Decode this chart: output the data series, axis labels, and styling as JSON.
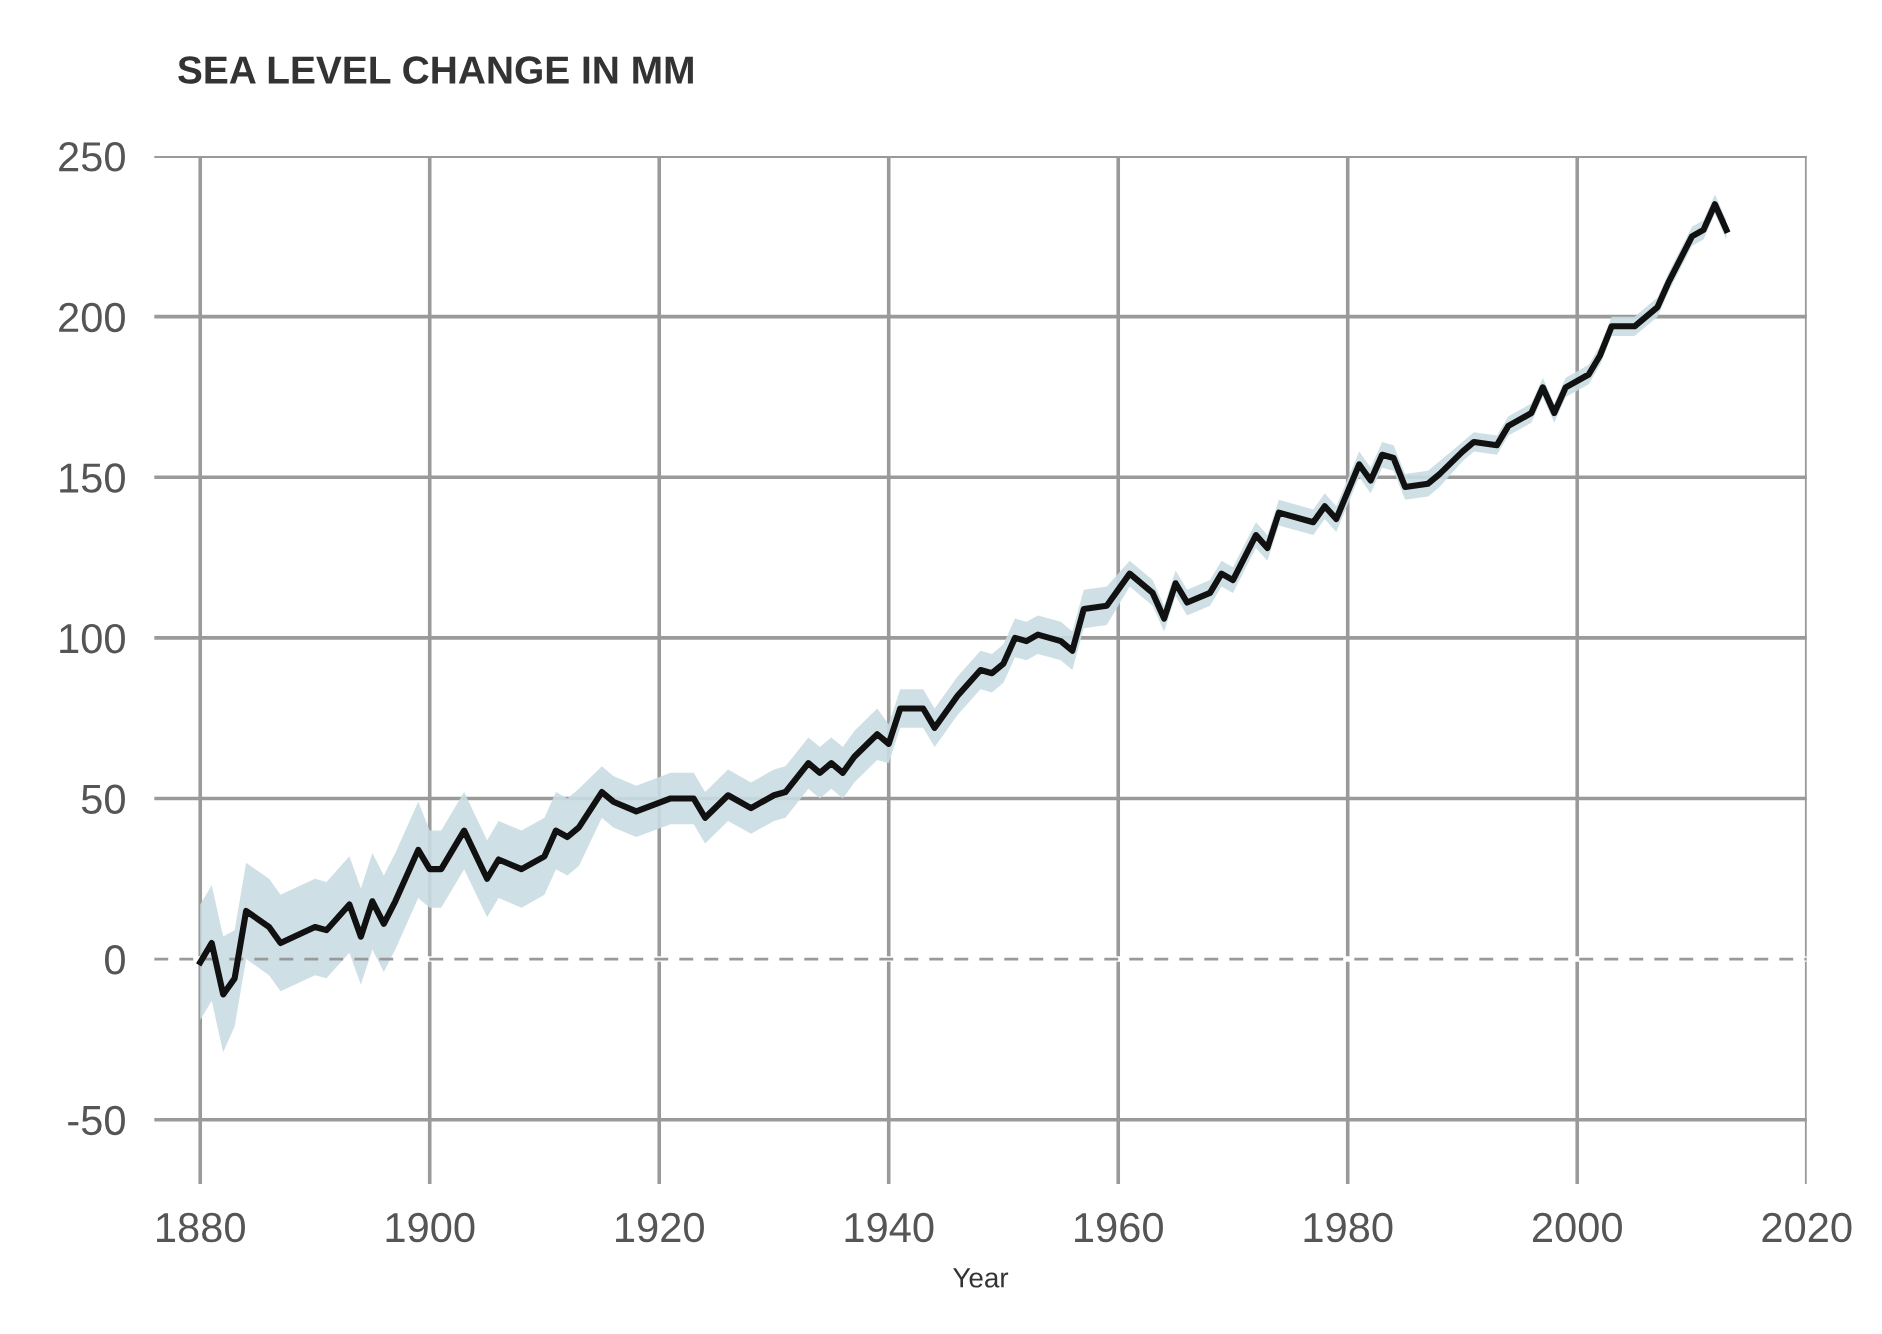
{
  "chart_data": {
    "type": "line",
    "title": "SEA LEVEL CHANGE IN MM",
    "xlabel": "Year",
    "x": [
      1880,
      1881,
      1882,
      1883,
      1884,
      1886,
      1887,
      1890,
      1891,
      1893,
      1894,
      1895,
      1896,
      1897,
      1899,
      1900,
      1901,
      1903,
      1905,
      1906,
      1908,
      1910,
      1911,
      1912,
      1913,
      1915,
      1916,
      1918,
      1921,
      1923,
      1924,
      1926,
      1928,
      1930,
      1931,
      1933,
      1934,
      1935,
      1936,
      1937,
      1939,
      1940,
      1941,
      1943,
      1944,
      1946,
      1948,
      1949,
      1950,
      1951,
      1952,
      1953,
      1955,
      1956,
      1957,
      1959,
      1961,
      1963,
      1964,
      1965,
      1966,
      1968,
      1969,
      1970,
      1972,
      1973,
      1974,
      1977,
      1978,
      1979,
      1981,
      1982,
      1983,
      1984,
      1985,
      1987,
      1988,
      1990,
      1991,
      1993,
      1994,
      1996,
      1997,
      1998,
      1999,
      2001,
      2002,
      2003,
      2005,
      2007,
      2008,
      2010,
      2011,
      2012,
      2013
    ],
    "series": [
      {
        "color": "#111111",
        "values": [
          -1,
          5,
          -11,
          -6,
          15,
          10,
          5,
          10,
          9,
          17,
          7,
          18,
          11,
          18,
          34,
          28,
          28,
          40,
          25,
          31,
          28,
          32,
          40,
          38,
          41,
          52,
          49,
          46,
          50,
          50,
          44,
          51,
          47,
          51,
          52,
          61,
          58,
          61,
          58,
          63,
          70,
          67,
          78,
          78,
          72,
          82,
          90,
          89,
          92,
          100,
          99,
          101,
          99,
          96,
          109,
          110,
          120,
          114,
          106,
          117,
          111,
          114,
          120,
          118,
          132,
          128,
          139,
          136,
          141,
          137,
          154,
          149,
          157,
          156,
          147,
          148,
          151,
          158,
          161,
          160,
          166,
          170,
          178,
          170,
          178,
          182,
          188,
          197,
          197,
          203,
          211,
          225,
          227,
          235,
          227
        ],
        "lower": [
          -19,
          -13,
          -29,
          -21,
          0,
          -5,
          -10,
          -5,
          -6,
          2,
          -8,
          3,
          -4,
          3,
          19,
          16,
          16,
          28,
          13,
          19,
          16,
          20,
          28,
          26,
          29,
          44,
          41,
          38,
          42,
          42,
          36,
          43,
          39,
          43,
          44,
          53,
          50,
          53,
          50,
          55,
          62,
          61,
          72,
          72,
          66,
          76,
          84,
          83,
          86,
          94,
          93,
          95,
          93,
          90,
          103,
          104,
          116,
          110,
          102,
          113,
          107,
          110,
          116,
          114,
          128,
          124,
          135,
          132,
          137,
          133,
          150,
          145,
          153,
          152,
          143,
          144,
          147,
          155,
          158,
          157,
          163,
          167,
          175,
          167,
          175,
          179,
          185,
          194,
          194,
          200,
          208,
          222,
          224,
          232,
          224
        ],
        "upper": [
          17,
          23,
          7,
          9,
          30,
          25,
          20,
          25,
          24,
          32,
          22,
          33,
          26,
          33,
          49,
          40,
          40,
          52,
          37,
          43,
          40,
          44,
          52,
          50,
          53,
          60,
          57,
          54,
          58,
          58,
          52,
          59,
          55,
          59,
          60,
          69,
          66,
          69,
          66,
          71,
          78,
          73,
          84,
          84,
          78,
          88,
          96,
          95,
          98,
          106,
          105,
          107,
          105,
          102,
          115,
          116,
          124,
          118,
          110,
          121,
          115,
          118,
          124,
          122,
          136,
          132,
          143,
          140,
          145,
          141,
          158,
          153,
          161,
          160,
          151,
          152,
          155,
          161,
          164,
          163,
          169,
          173,
          181,
          173,
          181,
          185,
          191,
          200,
          200,
          206,
          214,
          228,
          230,
          238,
          230
        ]
      }
    ],
    "xlim": [
      1876,
      2020
    ],
    "xticks": [
      1880,
      1900,
      1920,
      1940,
      1960,
      1980,
      2000,
      2020
    ],
    "ylim": [
      -70,
      250
    ],
    "yticks": [
      -50,
      0,
      50,
      100,
      150,
      200,
      250
    ],
    "grid": true,
    "legend": false,
    "ref_lines": [
      {
        "axis": "y",
        "value": 0,
        "color": "#999999",
        "line_style": "dashed"
      }
    ]
  }
}
